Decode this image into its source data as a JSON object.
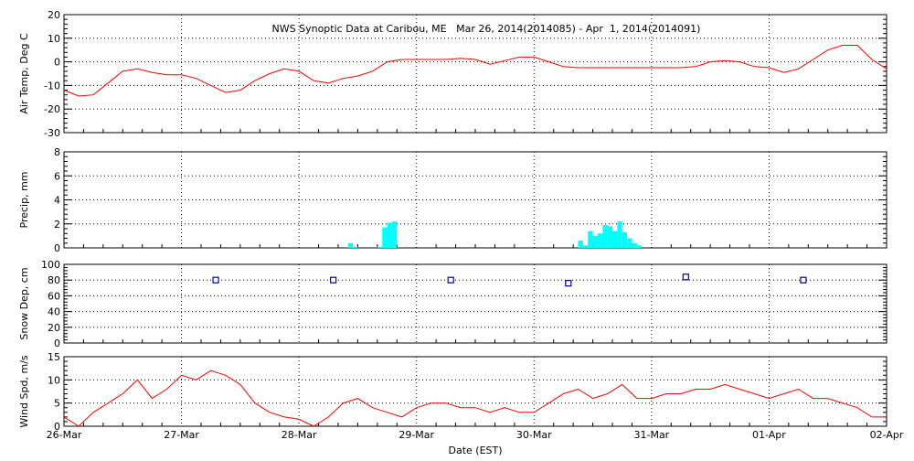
{
  "chart_data": {
    "type": "line",
    "title": "NWS Synoptic Data at Caribou, ME   Mar 26, 2014(2014085) - Apr  1, 2014(2014091)",
    "xlabel": "Date (EST)",
    "x_ticks": [
      "26-Mar",
      "27-Mar",
      "28-Mar",
      "29-Mar",
      "30-Mar",
      "31-Mar",
      "01-Apr",
      "02-Apr"
    ],
    "xlim": [
      "2014-03-26 00:00",
      "2014-04-02 00:00"
    ],
    "grid": true,
    "colors": {
      "temp": "#ff0000",
      "precip": "#00ffff",
      "snow": "#0000aa",
      "wind": "#ff0000"
    },
    "panels": [
      {
        "id": "air-temp",
        "type": "line",
        "ylabel": "Air Temp, Deg C",
        "ylim": [
          -30,
          20
        ],
        "yticks": [
          -30,
          -20,
          -10,
          0,
          10,
          20
        ],
        "series": [
          {
            "x": [
              "2014-03-26 00:00",
              "2014-03-26 03:00",
              "2014-03-26 06:00",
              "2014-03-26 09:00",
              "2014-03-26 12:00",
              "2014-03-26 15:00",
              "2014-03-26 18:00",
              "2014-03-26 21:00",
              "2014-03-27 00:00",
              "2014-03-27 03:00",
              "2014-03-27 06:00",
              "2014-03-27 09:00",
              "2014-03-27 12:00",
              "2014-03-27 15:00",
              "2014-03-27 18:00",
              "2014-03-27 21:00",
              "2014-03-28 00:00",
              "2014-03-28 03:00",
              "2014-03-28 06:00",
              "2014-03-28 09:00",
              "2014-03-28 12:00",
              "2014-03-28 15:00",
              "2014-03-28 18:00",
              "2014-03-28 21:00",
              "2014-03-29 00:00",
              "2014-03-29 03:00",
              "2014-03-29 06:00",
              "2014-03-29 09:00",
              "2014-03-29 12:00",
              "2014-03-29 15:00",
              "2014-03-29 18:00",
              "2014-03-29 21:00",
              "2014-03-30 00:00",
              "2014-03-30 03:00",
              "2014-03-30 06:00",
              "2014-03-30 09:00",
              "2014-03-30 12:00",
              "2014-03-30 15:00",
              "2014-03-30 18:00",
              "2014-03-30 21:00",
              "2014-03-31 00:00",
              "2014-03-31 03:00",
              "2014-03-31 06:00",
              "2014-03-31 09:00",
              "2014-03-31 12:00",
              "2014-03-31 15:00",
              "2014-03-31 18:00",
              "2014-03-31 21:00",
              "2014-04-01 00:00",
              "2014-04-01 03:00",
              "2014-04-01 06:00",
              "2014-04-01 09:00",
              "2014-04-01 12:00",
              "2014-04-01 15:00",
              "2014-04-01 18:00",
              "2014-04-01 21:00",
              "2014-04-02 00:00"
            ],
            "values": [
              -12,
              -14.5,
              -14,
              -9,
              -4,
              -3,
              -4.5,
              -5.5,
              -5.5,
              -7,
              -10,
              -13,
              -12,
              -8,
              -5,
              -3,
              -4,
              -8,
              -9,
              -7,
              -6,
              -4,
              0,
              1,
              1,
              1,
              1,
              1.5,
              1,
              -1,
              0.5,
              2,
              2,
              0,
              -2,
              -2.5,
              -2.5,
              -2.5,
              -2.5,
              -2.5,
              -2.5,
              -2.5,
              -2.5,
              -2,
              0,
              0.5,
              0,
              -2,
              -2.5,
              -4.5,
              -3,
              1,
              5,
              7,
              7,
              1,
              -3
            ]
          }
        ]
      },
      {
        "id": "precip",
        "type": "bar",
        "ylabel": "Precip, mm",
        "ylim": [
          0,
          8
        ],
        "yticks": [
          0,
          2,
          4,
          6,
          8
        ],
        "series": [
          {
            "x": [
              "2014-03-28 10:00",
              "2014-03-28 11:00",
              "2014-03-28 16:00",
              "2014-03-28 17:00",
              "2014-03-28 18:00",
              "2014-03-28 19:00",
              "2014-03-30 09:00",
              "2014-03-30 10:00",
              "2014-03-30 11:00",
              "2014-03-30 12:00",
              "2014-03-30 13:00",
              "2014-03-30 14:00",
              "2014-03-30 15:00",
              "2014-03-30 16:00",
              "2014-03-30 17:00",
              "2014-03-30 18:00",
              "2014-03-30 19:00",
              "2014-03-30 20:00",
              "2014-03-30 21:00"
            ],
            "values": [
              0.4,
              0.1,
              0.1,
              1.7,
              2.1,
              2.2,
              0.6,
              0.2,
              1.4,
              1.0,
              1.2,
              1.9,
              1.8,
              1.4,
              2.2,
              1.3,
              0.8,
              0.4,
              0.2
            ]
          }
        ]
      },
      {
        "id": "snow-depth",
        "type": "scatter",
        "ylabel": "Snow Dep, cm",
        "ylim": [
          0,
          100
        ],
        "yticks": [
          0,
          20,
          40,
          60,
          80,
          100
        ],
        "series": [
          {
            "x": [
              "2014-03-27 07:00",
              "2014-03-28 07:00",
              "2014-03-29 07:00",
              "2014-03-30 07:00",
              "2014-03-31 07:00",
              "2014-04-01 07:00"
            ],
            "values": [
              80,
              80,
              80,
              76,
              84,
              80
            ]
          }
        ]
      },
      {
        "id": "wind-speed",
        "type": "line",
        "ylabel": "Wind Spd, m/s",
        "ylim": [
          0,
          15
        ],
        "yticks": [
          0,
          5,
          10,
          15
        ],
        "series": [
          {
            "x": [
              "2014-03-26 00:00",
              "2014-03-26 03:00",
              "2014-03-26 06:00",
              "2014-03-26 09:00",
              "2014-03-26 12:00",
              "2014-03-26 15:00",
              "2014-03-26 18:00",
              "2014-03-26 21:00",
              "2014-03-27 00:00",
              "2014-03-27 03:00",
              "2014-03-27 06:00",
              "2014-03-27 09:00",
              "2014-03-27 12:00",
              "2014-03-27 15:00",
              "2014-03-27 18:00",
              "2014-03-27 21:00",
              "2014-03-28 00:00",
              "2014-03-28 03:00",
              "2014-03-28 06:00",
              "2014-03-28 09:00",
              "2014-03-28 12:00",
              "2014-03-28 15:00",
              "2014-03-28 18:00",
              "2014-03-28 21:00",
              "2014-03-29 00:00",
              "2014-03-29 03:00",
              "2014-03-29 06:00",
              "2014-03-29 09:00",
              "2014-03-29 12:00",
              "2014-03-29 15:00",
              "2014-03-29 18:00",
              "2014-03-29 21:00",
              "2014-03-30 00:00",
              "2014-03-30 03:00",
              "2014-03-30 06:00",
              "2014-03-30 09:00",
              "2014-03-30 12:00",
              "2014-03-30 15:00",
              "2014-03-30 18:00",
              "2014-03-30 21:00",
              "2014-03-31 00:00",
              "2014-03-31 03:00",
              "2014-03-31 06:00",
              "2014-03-31 09:00",
              "2014-03-31 12:00",
              "2014-03-31 15:00",
              "2014-03-31 18:00",
              "2014-03-31 21:00",
              "2014-04-01 00:00",
              "2014-04-01 03:00",
              "2014-04-01 06:00",
              "2014-04-01 09:00",
              "2014-04-01 12:00",
              "2014-04-01 15:00",
              "2014-04-01 18:00",
              "2014-04-01 21:00",
              "2014-04-02 00:00"
            ],
            "values": [
              2,
              0,
              3,
              5,
              7,
              10,
              6,
              8,
              11,
              10,
              12,
              11,
              9,
              5,
              3,
              2,
              1.5,
              0,
              2,
              5,
              6,
              4,
              3,
              2,
              4,
              5,
              5,
              4,
              4,
              3,
              4,
              3,
              3,
              5,
              7,
              8,
              6,
              7,
              9,
              6,
              6,
              7,
              7,
              8,
              8,
              9,
              8,
              7,
              6,
              7,
              8,
              6,
              6,
              5,
              4,
              2,
              2
            ]
          }
        ]
      }
    ]
  }
}
